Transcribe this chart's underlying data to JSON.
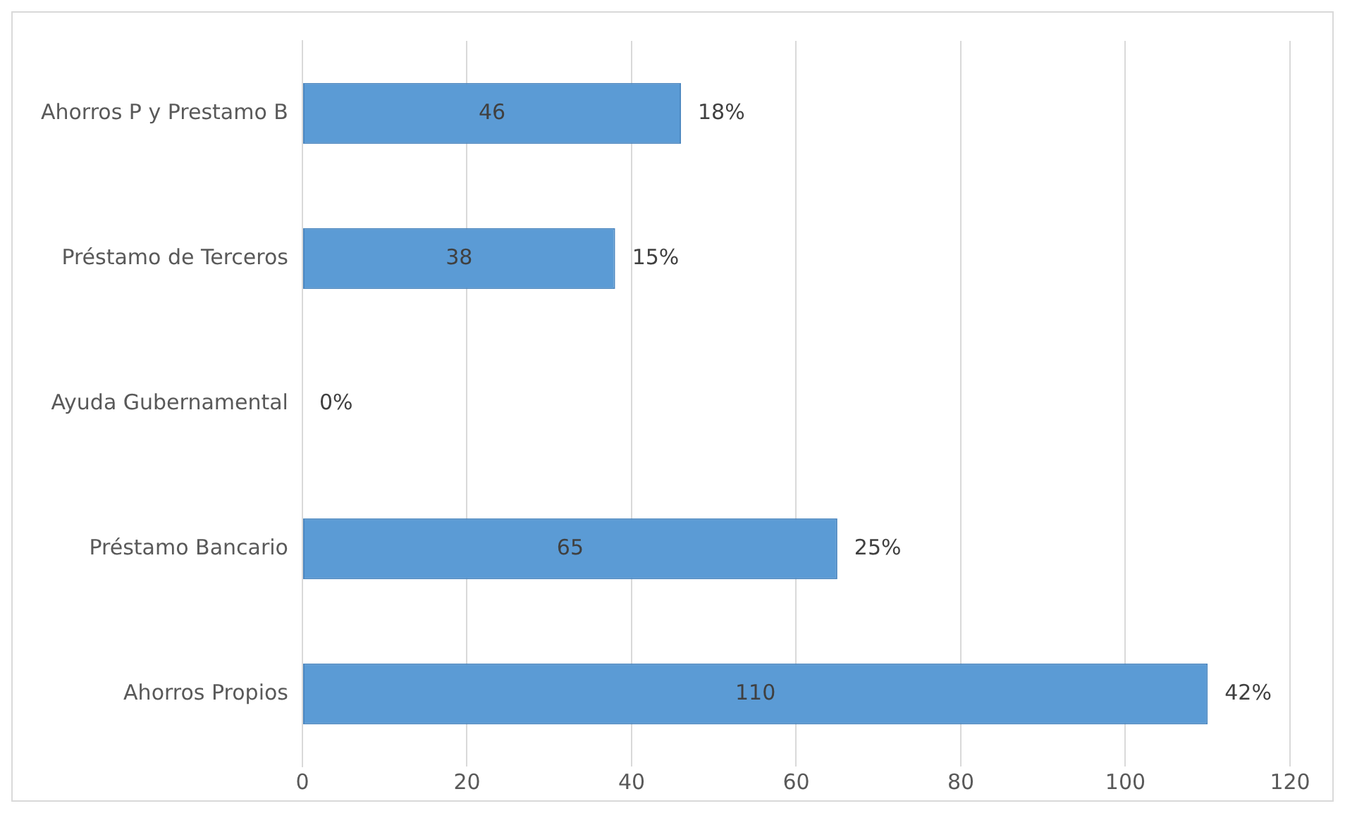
{
  "chart_data": {
    "type": "bar",
    "orientation": "horizontal",
    "categories": [
      "Ahorros P y Prestamo B",
      "Préstamo de Terceros",
      "Ayuda Gubernamental",
      "Préstamo Bancario",
      "Ahorros Propios"
    ],
    "values": [
      46,
      38,
      0,
      65,
      110
    ],
    "value_labels": [
      "46",
      "38",
      null,
      "65",
      "110"
    ],
    "annotations": [
      {
        "text": "18%",
        "x": 46,
        "y": "Ahorros P y Prestamo B"
      },
      {
        "text": "15%",
        "x": 38,
        "y": "Préstamo de Terceros"
      },
      {
        "text": "0%",
        "x": 0,
        "y": "Ayuda Gubernamental"
      },
      {
        "text": "25%",
        "x": 65,
        "y": "Préstamo Bancario"
      },
      {
        "text": "42%",
        "x": 110,
        "y": "Ahorros Propios"
      }
    ],
    "color": "#5b9bd5",
    "xlim": [
      0,
      120
    ],
    "xticks": [
      0,
      20,
      40,
      60,
      80,
      100,
      120
    ],
    "grid": "x",
    "legend": false
  }
}
